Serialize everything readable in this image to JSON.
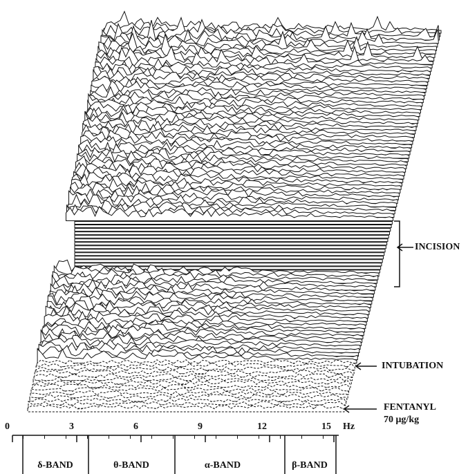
{
  "figure": {
    "axis": {
      "ticks": [
        0,
        3,
        6,
        9,
        12,
        15
      ],
      "unit": "Hz"
    },
    "bands": [
      "δ-BAND",
      "θ-BAND",
      "α-BAND",
      "β-BAND"
    ],
    "annotations": {
      "incision": "INCISION",
      "intubation": "INTUBATION",
      "fentanyl": "FENTANYL",
      "dose": "70 μg/kg"
    }
  }
}
